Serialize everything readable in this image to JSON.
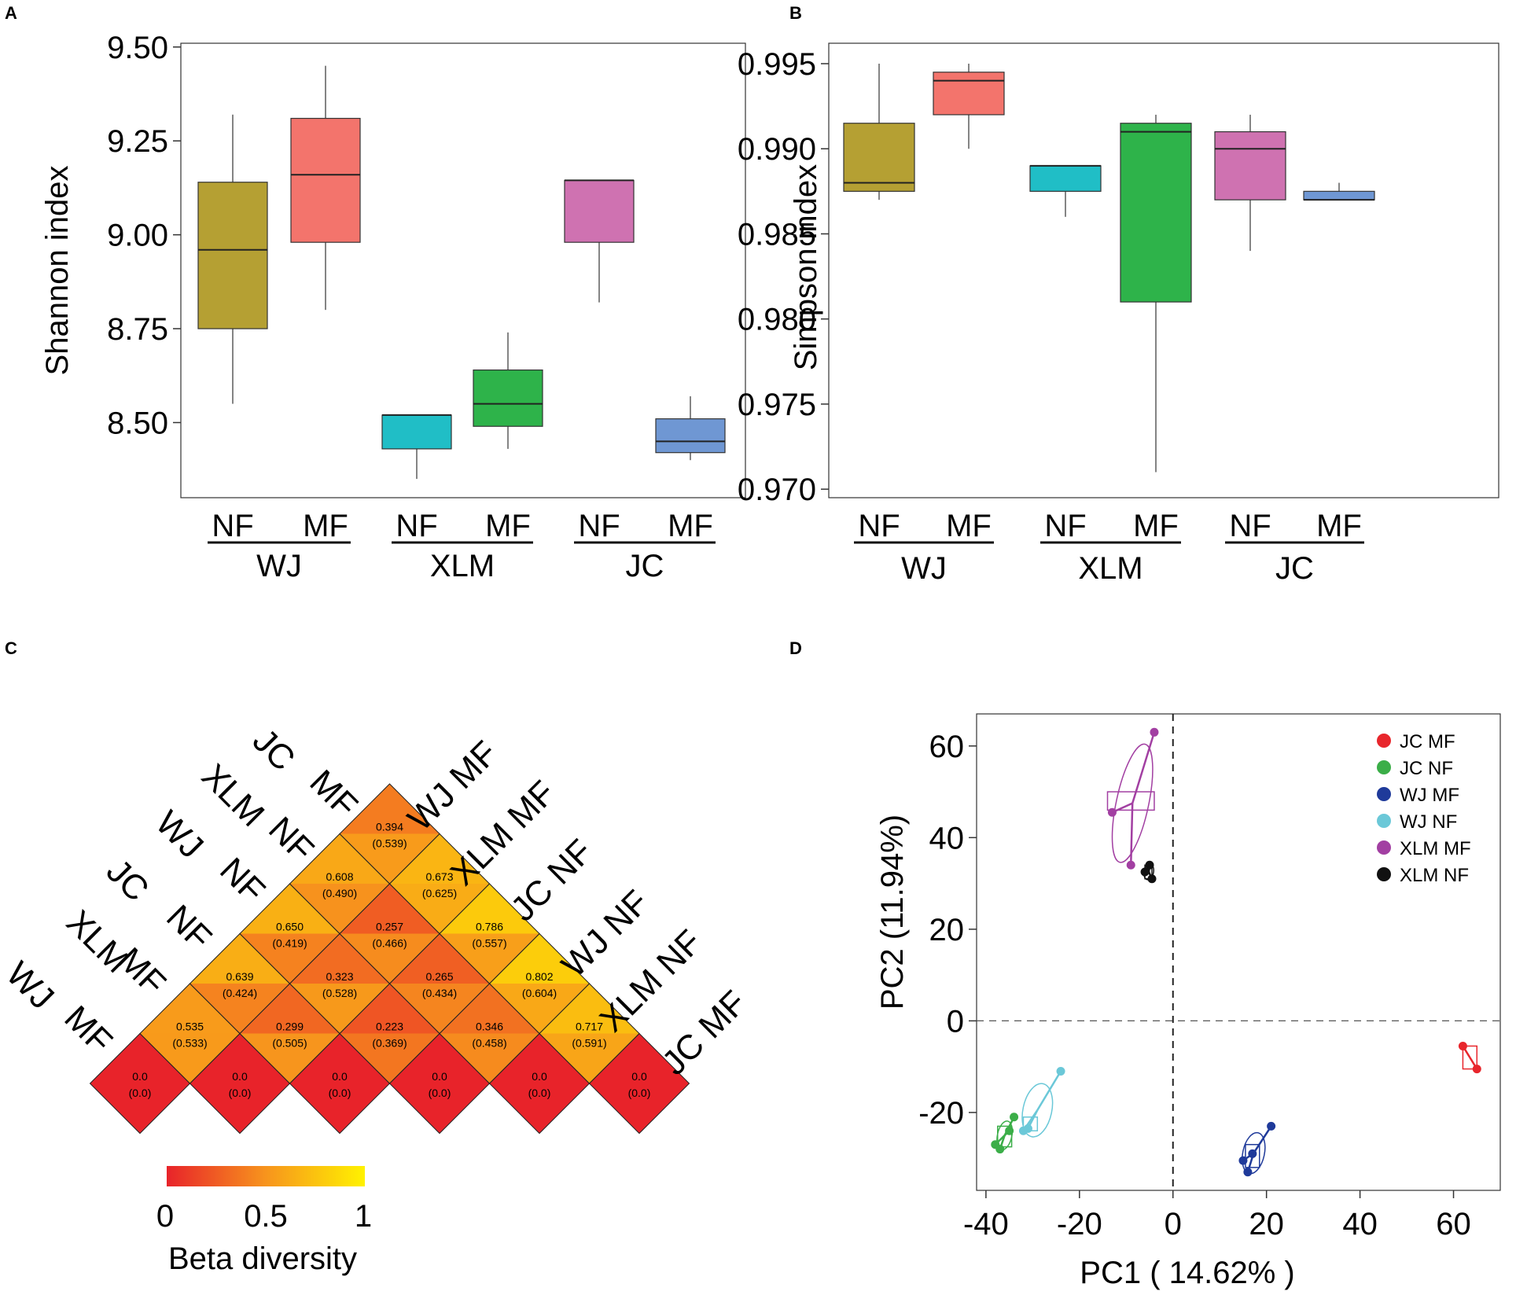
{
  "panel_labels": [
    "A",
    "B",
    "C",
    "D"
  ],
  "colors": {
    "olive": "#B5A033",
    "salmon": "#F3746C",
    "cyan": "#20BEC6",
    "green": "#2EB34A",
    "pink": "#CF72B1",
    "blue": "#6F97D3",
    "jc_mf": "#E8262C",
    "jc_nf": "#3BAE48",
    "wj_mf": "#1F3A9A",
    "wj_nf": "#6BC8D8",
    "xlm_mf": "#A23FA2",
    "xlm_nf": "#111111"
  },
  "chart_data": [
    {
      "type": "box",
      "panel": "A",
      "ylabel": "Shannon index",
      "xlabel": "",
      "ylim": [
        8.3,
        9.51
      ],
      "yticks": [
        "9.50",
        "9.25",
        "9.00",
        "8.75",
        "8.50"
      ],
      "categories": [
        "NF",
        "MF",
        "NF",
        "MF",
        "NF",
        "MF"
      ],
      "groups": [
        "WJ",
        "XLM",
        "JC"
      ],
      "boxes": [
        {
          "group": "WJ",
          "label": "NF",
          "color": "#B5A033",
          "min": 8.55,
          "q1": 8.75,
          "median": 8.96,
          "q3": 9.14,
          "max": 9.32
        },
        {
          "group": "WJ",
          "label": "MF",
          "color": "#F3746C",
          "min": 8.8,
          "q1": 8.98,
          "median": 9.16,
          "q3": 9.31,
          "max": 9.45
        },
        {
          "group": "XLM",
          "label": "NF",
          "color": "#20BEC6",
          "min": 8.35,
          "q1": 8.43,
          "median": 8.52,
          "q3": 8.52,
          "max": 8.52
        },
        {
          "group": "XLM",
          "label": "MF",
          "color": "#2EB34A",
          "min": 8.43,
          "q1": 8.49,
          "median": 8.55,
          "q3": 8.64,
          "max": 8.74
        },
        {
          "group": "JC",
          "label": "NF",
          "color": "#CF72B1",
          "min": 8.82,
          "q1": 8.98,
          "median": 9.145,
          "q3": 9.145,
          "max": 9.145
        },
        {
          "group": "JC",
          "label": "MF",
          "color": "#6F97D3",
          "min": 8.4,
          "q1": 8.42,
          "median": 8.45,
          "q3": 8.51,
          "max": 8.57
        }
      ]
    },
    {
      "type": "box",
      "panel": "B",
      "ylabel": "Simpson index",
      "xlabel": "",
      "ylim": [
        0.9695,
        0.9962
      ],
      "yticks": [
        "0.995",
        "0.990",
        "0.985",
        "0.980",
        "0.975",
        "0.970"
      ],
      "categories": [
        "NF",
        "MF",
        "NF",
        "MF",
        "NF",
        "MF"
      ],
      "groups": [
        "WJ",
        "XLM",
        "JC"
      ],
      "boxes": [
        {
          "group": "WJ",
          "label": "NF",
          "color": "#B5A033",
          "min": 0.987,
          "q1": 0.9875,
          "median": 0.988,
          "q3": 0.9915,
          "max": 0.995
        },
        {
          "group": "WJ",
          "label": "MF",
          "color": "#F3746C",
          "min": 0.99,
          "q1": 0.992,
          "median": 0.994,
          "q3": 0.9945,
          "max": 0.995
        },
        {
          "group": "XLM",
          "label": "NF",
          "color": "#20BEC6",
          "min": 0.986,
          "q1": 0.9875,
          "median": 0.989,
          "q3": 0.989,
          "max": 0.989
        },
        {
          "group": "XLM",
          "label": "MF",
          "color": "#2EB34A",
          "min": 0.971,
          "q1": 0.981,
          "median": 0.991,
          "q3": 0.9915,
          "max": 0.992
        },
        {
          "group": "JC",
          "label": "NF",
          "color": "#CF72B1",
          "min": 0.984,
          "q1": 0.987,
          "median": 0.99,
          "q3": 0.991,
          "max": 0.992
        },
        {
          "group": "JC",
          "label": "MF",
          "color": "#6F97D3",
          "min": 0.987,
          "q1": 0.987,
          "median": 0.987,
          "q3": 0.9875,
          "max": 0.988
        }
      ]
    },
    {
      "type": "heatmap",
      "panel": "C",
      "title": "",
      "samples": [
        "WJ MF",
        "XLM MF",
        "JC NF",
        "WJ NF",
        "XLM NF",
        "JC MF"
      ],
      "left_labels": [
        {
          "line1": "JC",
          "line2": "MF"
        },
        {
          "line1": "XLM",
          "line2": "NF"
        },
        {
          "line1": "WJ",
          "line2": "NF"
        },
        {
          "line1": "JC",
          "line2": "NF"
        },
        {
          "line1": "XLM",
          "line2": "MF"
        },
        {
          "line1": "WJ",
          "line2": "MF"
        }
      ],
      "right_labels": [
        "WJ MF",
        "XLM MF",
        "JC NF",
        "WJ NF",
        "XLM NF",
        "JC MF"
      ],
      "cells": [
        {
          "row": 0,
          "col": 0,
          "value": "0.0",
          "sub": "(0.0)"
        },
        {
          "row": 0,
          "col": 1,
          "value": "0.0",
          "sub": "(0.0)"
        },
        {
          "row": 0,
          "col": 2,
          "value": "0.0",
          "sub": "(0.0)"
        },
        {
          "row": 0,
          "col": 3,
          "value": "0.0",
          "sub": "(0.0)"
        },
        {
          "row": 0,
          "col": 4,
          "value": "0.0",
          "sub": "(0.0)"
        },
        {
          "row": 0,
          "col": 5,
          "value": "0.0",
          "sub": "(0.0)"
        },
        {
          "row": 1,
          "col": 0,
          "value": "0.535",
          "sub": "(0.533)"
        },
        {
          "row": 1,
          "col": 1,
          "value": "0.299",
          "sub": "(0.505)"
        },
        {
          "row": 1,
          "col": 2,
          "value": "0.223",
          "sub": "(0.369)"
        },
        {
          "row": 1,
          "col": 3,
          "value": "0.346",
          "sub": "(0.458)"
        },
        {
          "row": 1,
          "col": 4,
          "value": "0.717",
          "sub": "(0.591)"
        },
        {
          "row": 2,
          "col": 0,
          "value": "0.639",
          "sub": "(0.424)"
        },
        {
          "row": 2,
          "col": 1,
          "value": "0.323",
          "sub": "(0.528)"
        },
        {
          "row": 2,
          "col": 2,
          "value": "0.265",
          "sub": "(0.434)"
        },
        {
          "row": 2,
          "col": 3,
          "value": "0.802",
          "sub": "(0.604)"
        },
        {
          "row": 3,
          "col": 0,
          "value": "0.650",
          "sub": "(0.419)"
        },
        {
          "row": 3,
          "col": 1,
          "value": "0.257",
          "sub": "(0.466)"
        },
        {
          "row": 3,
          "col": 2,
          "value": "0.786",
          "sub": "(0.557)"
        },
        {
          "row": 4,
          "col": 0,
          "value": "0.608",
          "sub": "(0.490)"
        },
        {
          "row": 4,
          "col": 1,
          "value": "0.673",
          "sub": "(0.625)"
        },
        {
          "row": 5,
          "col": 0,
          "value": "0.394",
          "sub": "(0.539)"
        }
      ],
      "colorbar": {
        "title": "Beta diversity",
        "ticks": [
          "0",
          "0.5",
          "1"
        ],
        "range": [
          0,
          1
        ],
        "stops": [
          "#E8232A",
          "#F7941D",
          "#FFF200"
        ]
      }
    },
    {
      "type": "scatter",
      "panel": "D",
      "xlabel": "PC1 ( 14.62% )",
      "ylabel": "PC2 (11.94%)",
      "xlim": [
        -42,
        70
      ],
      "ylim": [
        -37,
        67
      ],
      "xticks": [
        "-40",
        "-20",
        "0",
        "20",
        "40",
        "60"
      ],
      "yticks": [
        "60",
        "40",
        "20",
        "0",
        "-20"
      ],
      "xtick_values": [
        -40,
        -20,
        0,
        20,
        40,
        60
      ],
      "ytick_values": [
        60,
        40,
        20,
        0,
        -20
      ],
      "legend_position": "top-right",
      "series": [
        {
          "name": "JC MF",
          "color": "#E8262C",
          "points": [
            [
              62,
              -5.5
            ],
            [
              65,
              -10.5
            ]
          ],
          "box": [
            62,
            -10.5,
            65,
            -5.5
          ]
        },
        {
          "name": "JC NF",
          "color": "#3BAE48",
          "points": [
            [
              -38,
              -27
            ],
            [
              -37,
              -28
            ],
            [
              -35,
              -24
            ],
            [
              -34,
              -21
            ]
          ],
          "box": [
            -37.5,
            -27.5,
            -34.5,
            -23
          ]
        },
        {
          "name": "WJ MF",
          "color": "#1F3A9A",
          "points": [
            [
              15,
              -30.5
            ],
            [
              16,
              -33
            ],
            [
              17,
              -29
            ],
            [
              21,
              -23
            ]
          ],
          "box": [
            15.5,
            -32,
            18.5,
            -27
          ]
        },
        {
          "name": "WJ NF",
          "color": "#6BC8D8",
          "points": [
            [
              -32,
              -24
            ],
            [
              -31,
              -23.5
            ],
            [
              -24,
              -11
            ]
          ],
          "box": [
            -32,
            -24,
            -29,
            -21
          ]
        },
        {
          "name": "XLM MF",
          "color": "#A23FA2",
          "points": [
            [
              -13,
              45.5
            ],
            [
              -9,
              34
            ],
            [
              -4,
              63
            ]
          ],
          "box": [
            -14,
            46,
            -4,
            50
          ]
        },
        {
          "name": "XLM NF",
          "color": "#111111",
          "points": [
            [
              -6,
              32.5
            ],
            [
              -5,
              34
            ],
            [
              -4.5,
              31
            ]
          ],
          "box": [
            -6,
            31,
            -4.5,
            34
          ]
        }
      ]
    }
  ]
}
